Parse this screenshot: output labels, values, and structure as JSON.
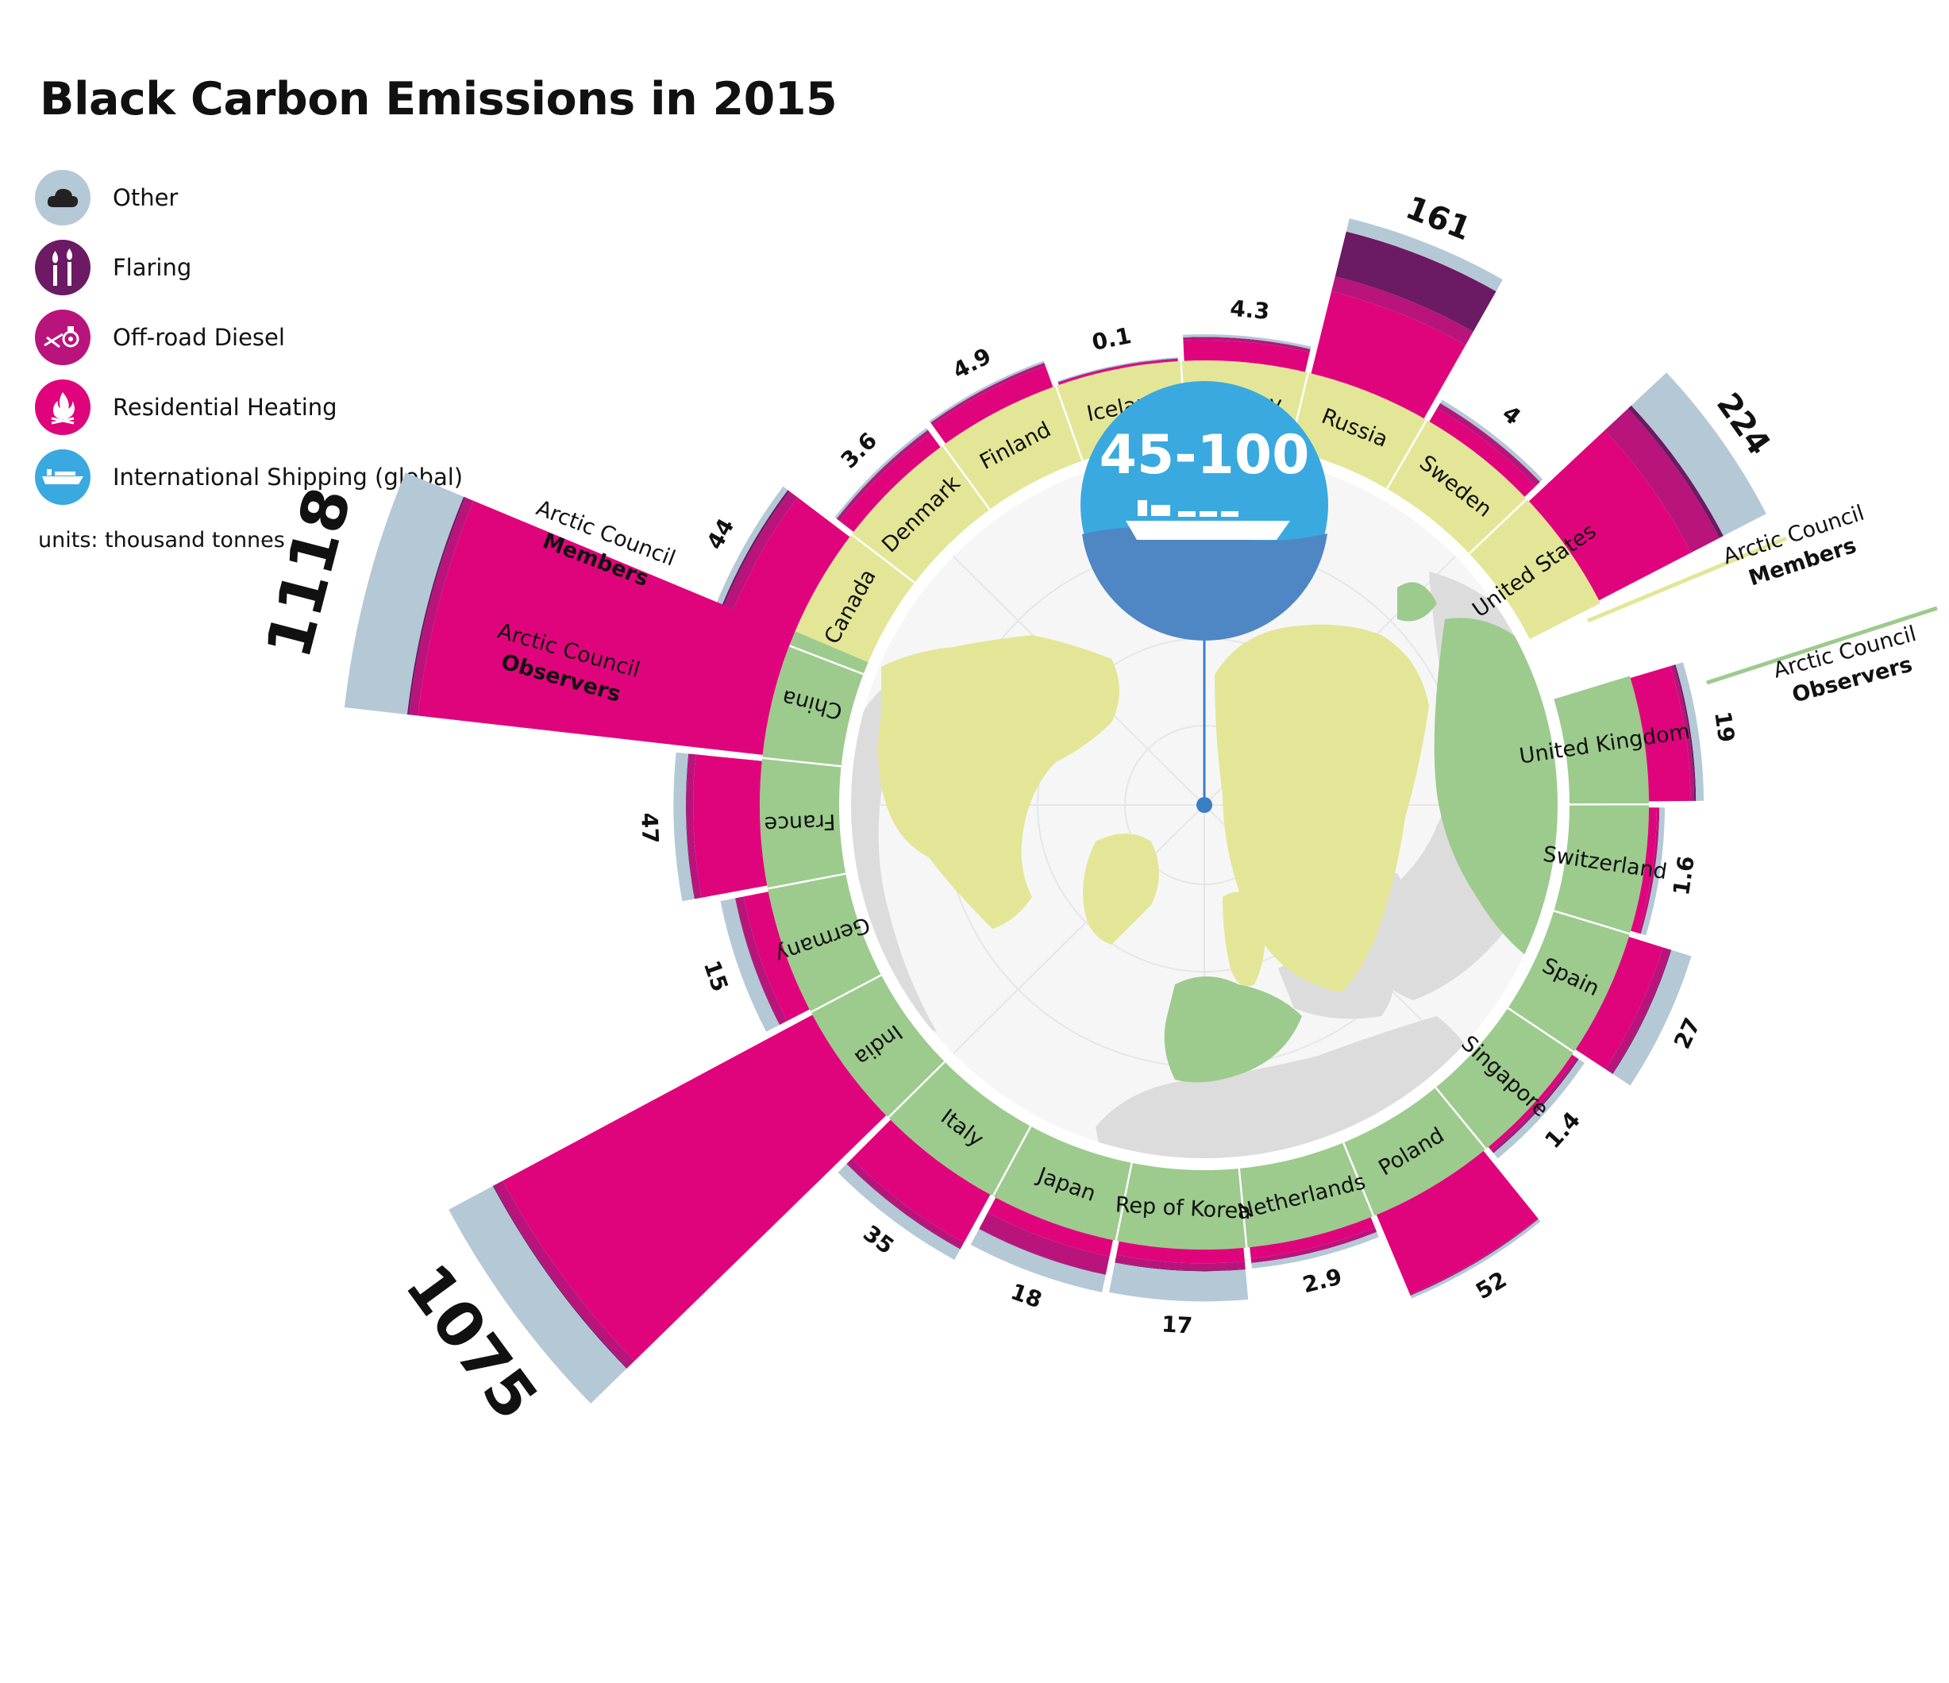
{
  "title": "Black Carbon Emissions in 2015",
  "legend": [
    {
      "label": "Other",
      "color": "#b5c8d6",
      "icon": "cloud-icon"
    },
    {
      "label": "Flaring",
      "color": "#6b1a63",
      "icon": "flare-icon"
    },
    {
      "label": "Off-road Diesel",
      "color": "#b8147c",
      "icon": "tractor-icon"
    },
    {
      "label": "Residential Heating",
      "color": "#e0047c",
      "icon": "fire-icon"
    },
    {
      "label": "International Shipping (global)",
      "color": "#3aa9df",
      "icon": "ship-icon"
    }
  ],
  "units_note": "units: thousand tonnes",
  "shipping": {
    "label": "45-100",
    "color": "#3aa9df"
  },
  "group_labels": {
    "members": {
      "line1": "Arctic Council",
      "line2": "Members"
    },
    "observers": {
      "line1": "Arctic Council",
      "line2": "Observers"
    }
  },
  "colors": {
    "members_ring": "#e4e697",
    "observers_ring": "#9ccb8d",
    "map_land": "#dcdcdc",
    "map_bg": "#f7f6f7"
  },
  "chart_data": {
    "type": "radial-bar",
    "title": "Black Carbon Emissions in 2015",
    "unit": "thousand tonnes",
    "categories": [
      "Other",
      "Flaring",
      "Off-road Diesel",
      "Residential Heating"
    ],
    "international_shipping_global": "45-100",
    "countries": [
      {
        "name": "Canada",
        "group": "members",
        "total": 44,
        "total_label": "44",
        "breakdown": {
          "residential": 27,
          "offroad": 9,
          "flaring": 2,
          "other": 6
        }
      },
      {
        "name": "Denmark",
        "group": "members",
        "total": 3.6,
        "total_label": "3.6",
        "breakdown": {
          "residential": 1.9,
          "offroad": 0.9,
          "flaring": 0.1,
          "other": 0.7
        }
      },
      {
        "name": "Finland",
        "group": "members",
        "total": 4.9,
        "total_label": "4.9",
        "breakdown": {
          "residential": 3.2,
          "offroad": 0.9,
          "flaring": 0.1,
          "other": 0.7
        }
      },
      {
        "name": "Iceland",
        "group": "members",
        "total": 0.1,
        "total_label": "0.1",
        "breakdown": {
          "residential": 0.01,
          "offroad": 0.04,
          "flaring": 0.0,
          "other": 0.05
        }
      },
      {
        "name": "Norway",
        "group": "members",
        "total": 4.3,
        "total_label": "4.3",
        "breakdown": {
          "residential": 2.6,
          "offroad": 0.8,
          "flaring": 0.1,
          "other": 0.8
        }
      },
      {
        "name": "Russia",
        "group": "members",
        "total": 161,
        "total_label": "161",
        "breakdown": {
          "residential": 45,
          "offroad": 18,
          "flaring": 72,
          "other": 26
        }
      },
      {
        "name": "Sweden",
        "group": "members",
        "total": 4,
        "total_label": "4",
        "breakdown": {
          "residential": 1.5,
          "offroad": 1.3,
          "flaring": 0.1,
          "other": 1.1
        }
      },
      {
        "name": "United States",
        "group": "members",
        "total": 224,
        "total_label": "224",
        "breakdown": {
          "residential": 68,
          "offroad": 48,
          "flaring": 8,
          "other": 100
        }
      },
      {
        "name": "United Kingdom",
        "group": "observers",
        "total": 19,
        "total_label": "19",
        "breakdown": {
          "residential": 11,
          "offroad": 2,
          "flaring": 1,
          "other": 5
        }
      },
      {
        "name": "Switzerland",
        "group": "observers",
        "total": 1.6,
        "total_label": "1.6",
        "breakdown": {
          "residential": 0.4,
          "offroad": 0.3,
          "flaring": 0.0,
          "other": 0.9
        }
      },
      {
        "name": "Spain",
        "group": "observers",
        "total": 27,
        "total_label": "27",
        "breakdown": {
          "residential": 8,
          "offroad": 4,
          "flaring": 0.5,
          "other": 14.5
        }
      },
      {
        "name": "Singapore",
        "group": "observers",
        "total": 1.4,
        "total_label": "1.4",
        "breakdown": {
          "residential": 0.1,
          "offroad": 0.2,
          "flaring": 0.1,
          "other": 1.0
        }
      },
      {
        "name": "Poland",
        "group": "observers",
        "total": 52,
        "total_label": "52",
        "breakdown": {
          "residential": 47,
          "offroad": 1,
          "flaring": 0.5,
          "other": 3.5
        }
      },
      {
        "name": "Netherlands",
        "group": "observers",
        "total": 2.9,
        "total_label": "2.9",
        "breakdown": {
          "residential": 0.8,
          "offroad": 0.8,
          "flaring": 0.0,
          "other": 1.3
        }
      },
      {
        "name": "Rep of Korea",
        "group": "observers",
        "total": 17,
        "total_label": "17",
        "breakdown": {
          "residential": 1.2,
          "offroad": 1.6,
          "flaring": 0.2,
          "other": 14
        }
      },
      {
        "name": "Japan",
        "group": "observers",
        "total": 18,
        "total_label": "18",
        "breakdown": {
          "residential": 1.8,
          "offroad": 6,
          "flaring": 0.2,
          "other": 10
        }
      },
      {
        "name": "Italy",
        "group": "observers",
        "total": 35,
        "total_label": "35",
        "breakdown": {
          "residential": 19,
          "offroad": 5,
          "flaring": 0.5,
          "other": 10.5
        }
      },
      {
        "name": "India",
        "group": "observers",
        "total": 1075,
        "total_label": "1075",
        "breakdown": {
          "residential": 780,
          "offroad": 45,
          "flaring": 5,
          "other": 245
        }
      },
      {
        "name": "Germany",
        "group": "observers",
        "total": 15,
        "total_label": "15",
        "breakdown": {
          "residential": 4,
          "offroad": 3,
          "flaring": 0.2,
          "other": 7.8
        }
      },
      {
        "name": "France",
        "group": "observers",
        "total": 47,
        "total_label": "47",
        "breakdown": {
          "residential": 28,
          "offroad": 6,
          "flaring": 0.5,
          "other": 12.5
        }
      },
      {
        "name": "China",
        "group": "observers",
        "total": 1118,
        "total_label": "1118",
        "breakdown": {
          "residential": 760,
          "offroad": 40,
          "flaring": 8,
          "other": 310
        }
      }
    ]
  }
}
